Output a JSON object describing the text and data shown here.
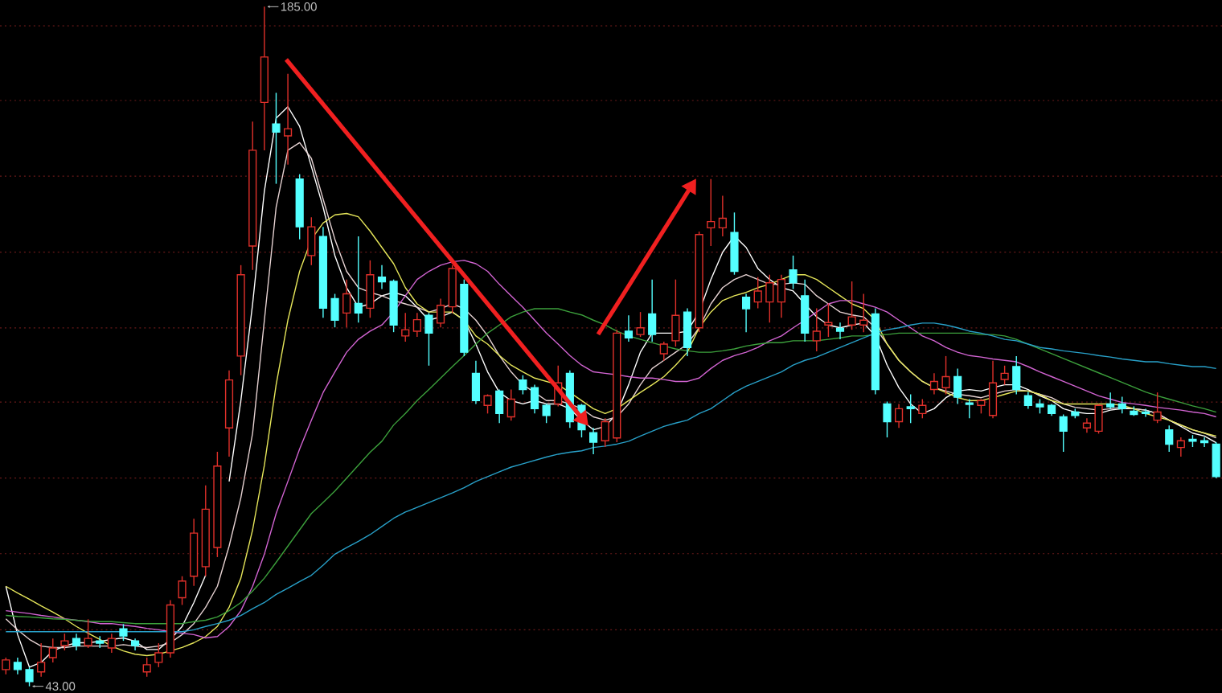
{
  "chart_data": {
    "type": "candlestick",
    "categories": [
      null,
      null,
      null,
      null,
      null,
      null,
      null,
      null,
      null,
      null,
      null,
      null,
      null,
      null,
      null,
      null,
      null,
      null,
      null,
      null,
      null,
      null,
      null,
      null,
      null,
      null,
      null,
      null,
      null,
      null,
      null,
      null,
      null,
      null,
      null,
      null,
      null,
      null,
      null,
      null,
      null,
      null,
      null,
      null,
      null,
      null,
      null,
      null,
      null,
      null,
      null,
      null,
      null,
      null,
      null,
      null,
      null,
      null,
      null,
      null,
      null,
      null,
      null,
      null,
      null,
      null,
      null,
      null,
      null,
      null,
      null,
      null,
      null,
      null,
      null,
      null,
      null,
      null,
      null,
      null,
      null,
      null,
      null,
      null,
      null,
      null,
      null,
      null,
      null,
      null,
      null,
      null,
      null,
      null,
      null,
      null,
      null,
      null,
      null,
      null,
      null,
      null,
      null,
      null
    ],
    "ohlc": [
      [
        46.5,
        49,
        45.5,
        48.5
      ],
      [
        48,
        49,
        45.5,
        46.5
      ],
      [
        46.5,
        47,
        43,
        44
      ],
      [
        46,
        52,
        45,
        48
      ],
      [
        49,
        53,
        48,
        51
      ],
      [
        51.5,
        54,
        50.5,
        52.5
      ],
      [
        53,
        54,
        50.5,
        51.5
      ],
      [
        51.5,
        57,
        51,
        53
      ],
      [
        52.5,
        53.5,
        51,
        52
      ],
      [
        51,
        54,
        50,
        53
      ],
      [
        55,
        56,
        52.5,
        53.5
      ],
      [
        52.5,
        53,
        50.5,
        51.5
      ],
      [
        46,
        49,
        45,
        47.5
      ],
      [
        48,
        52,
        47,
        50
      ],
      [
        50,
        61,
        49,
        60
      ],
      [
        61.5,
        66,
        60,
        65
      ],
      [
        66,
        78,
        64,
        75
      ],
      [
        68,
        85,
        66,
        80
      ],
      [
        72,
        92,
        70,
        89
      ],
      [
        97,
        109,
        91,
        107
      ],
      [
        112,
        131,
        108,
        129
      ],
      [
        135,
        161,
        130,
        155
      ],
      [
        165,
        185,
        155,
        174.5
      ],
      [
        160.5,
        167,
        148,
        158.8
      ],
      [
        158,
        171,
        152,
        159.5
      ],
      [
        149,
        150,
        136.4,
        139
      ],
      [
        133,
        141,
        131,
        139
      ],
      [
        137,
        139,
        120,
        122
      ],
      [
        124,
        125,
        118,
        119.5
      ],
      [
        121,
        128,
        118,
        125
      ],
      [
        123,
        137,
        119,
        121
      ],
      [
        122,
        132,
        120,
        129
      ],
      [
        128.5,
        131,
        126,
        127.5
      ],
      [
        127.6,
        128,
        117,
        118.5
      ],
      [
        116.2,
        121,
        115,
        117.5
      ],
      [
        117.2,
        121,
        116,
        119.6
      ],
      [
        120.5,
        121,
        110,
        116.8
      ],
      [
        118.9,
        124,
        118,
        122.6
      ],
      [
        122.3,
        131,
        121,
        130.3
      ],
      [
        127,
        128,
        112,
        112.8
      ],
      [
        108.4,
        111,
        102,
        102.7
      ],
      [
        101.7,
        104,
        100,
        103.7
      ],
      [
        104.7,
        105,
        98,
        100
      ],
      [
        99.3,
        105,
        98.5,
        103
      ],
      [
        107,
        108,
        104,
        105
      ],
      [
        105.4,
        106,
        100,
        101
      ],
      [
        101.7,
        102,
        98,
        99.6
      ],
      [
        102,
        110,
        101.5,
        106.4
      ],
      [
        108.4,
        109,
        97,
        98.3
      ],
      [
        101.7,
        102,
        95,
        96.6
      ],
      [
        96,
        97,
        91.5,
        94
      ],
      [
        94.3,
        99,
        93,
        98.3
      ],
      [
        94.9,
        117.5,
        94,
        116.8
      ],
      [
        117.2,
        120.5,
        115,
        115.8
      ],
      [
        116.5,
        121.2,
        116,
        117.9
      ],
      [
        120.8,
        128,
        115,
        116.5
      ],
      [
        112.5,
        115,
        111,
        114.5
      ],
      [
        115.2,
        128,
        114,
        120.5
      ],
      [
        121.2,
        122,
        112,
        113.8
      ],
      [
        117.9,
        138,
        117,
        137.4
      ],
      [
        138.8,
        149,
        135,
        140.1
      ],
      [
        138.8,
        145.5,
        137,
        140.8
      ],
      [
        137.8,
        142,
        129,
        129.7
      ],
      [
        124.3,
        125,
        117,
        121.9
      ],
      [
        123.3,
        128.5,
        122,
        125.6
      ],
      [
        123.3,
        129,
        119,
        127.3
      ],
      [
        123.3,
        129,
        120,
        128
      ],
      [
        130,
        133,
        126,
        127.3
      ],
      [
        124.6,
        128,
        115,
        116.8
      ],
      [
        115.2,
        122,
        113,
        117.2
      ],
      [
        118.5,
        123,
        116,
        119
      ],
      [
        117.8,
        119,
        115.5,
        117.2
      ],
      [
        118.5,
        127.6,
        117.5,
        120.2
      ],
      [
        118.5,
        125,
        117,
        119.5
      ],
      [
        120.8,
        122,
        104,
        105
      ],
      [
        102,
        102.5,
        95,
        98.3
      ],
      [
        98.3,
        102,
        97,
        101
      ],
      [
        101.4,
        104,
        98,
        101
      ],
      [
        100,
        103,
        99,
        101.7
      ],
      [
        105,
        108.4,
        104,
        106.7
      ],
      [
        105.4,
        112,
        104,
        107.7
      ],
      [
        107.7,
        109.4,
        102,
        103.4
      ],
      [
        102.2,
        103,
        99,
        101.9
      ],
      [
        101.7,
        103,
        100,
        102.7
      ],
      [
        99.6,
        111,
        99,
        106.4
      ],
      [
        107.1,
        110,
        106,
        108.4
      ],
      [
        109.8,
        112,
        104,
        105
      ],
      [
        103.7,
        104.5,
        101,
        101.7
      ],
      [
        102,
        103,
        100,
        101.4
      ],
      [
        101.7,
        102,
        99.5,
        100
      ],
      [
        99.3,
        99.8,
        92,
        96.3
      ],
      [
        100.3,
        101,
        99,
        99.6
      ],
      [
        97,
        99,
        96,
        98
      ],
      [
        96.3,
        102,
        95.8,
        101.7
      ],
      [
        102,
        104.4,
        101,
        101.4
      ],
      [
        102,
        103.5,
        100,
        101
      ],
      [
        100.5,
        101.5,
        99.5,
        99.8
      ],
      [
        100.3,
        101,
        99.3,
        100
      ],
      [
        98.6,
        104.4,
        98,
        100.3
      ],
      [
        96.6,
        97.5,
        92,
        93.6
      ],
      [
        92.9,
        95,
        91,
        94.3
      ],
      [
        94.6,
        95.5,
        93,
        94.2
      ],
      [
        94.3,
        95,
        93,
        93.9
      ],
      [
        93.6,
        94,
        86.5,
        86.8
      ]
    ],
    "colors": [
      "#e0302a",
      "#54ffff",
      "#54ffff",
      "#e0302a",
      "#e0302a",
      "#e0302a",
      "#54ffff",
      "#e0302a",
      "#54ffff",
      "#e0302a",
      "#54ffff",
      "#54ffff",
      "#e0302a",
      "#e0302a",
      "#e0302a",
      "#e0302a",
      "#e0302a",
      "#e0302a",
      "#e0302a",
      "#e0302a",
      "#e0302a",
      "#e0302a",
      "#e0302a",
      "#54ffff",
      "#e0302a",
      "#54ffff",
      "#e0302a",
      "#54ffff",
      "#54ffff",
      "#e0302a",
      "#54ffff",
      "#e0302a",
      "#54ffff",
      "#54ffff",
      "#e0302a",
      "#e0302a",
      "#54ffff",
      "#e0302a",
      "#e0302a",
      "#54ffff",
      "#54ffff",
      "#e0302a",
      "#54ffff",
      "#e0302a",
      "#54ffff",
      "#54ffff",
      "#54ffff",
      "#e0302a",
      "#54ffff",
      "#54ffff",
      "#54ffff",
      "#e0302a",
      "#e0302a",
      "#54ffff",
      "#e0302a",
      "#54ffff",
      "#e0302a",
      "#e0302a",
      "#54ffff",
      "#e0302a",
      "#e0302a",
      "#e0302a",
      "#54ffff",
      "#54ffff",
      "#e0302a",
      "#e0302a",
      "#e0302a",
      "#54ffff",
      "#54ffff",
      "#e0302a",
      "#e0302a",
      "#54ffff",
      "#e0302a",
      "#e0302a",
      "#54ffff",
      "#54ffff",
      "#e0302a",
      "#54ffff",
      "#e0302a",
      "#e0302a",
      "#e0302a",
      "#54ffff",
      "#54ffff",
      "#e0302a",
      "#e0302a",
      "#e0302a",
      "#54ffff",
      "#54ffff",
      "#54ffff",
      "#54ffff",
      "#54ffff",
      "#54ffff",
      "#e0302a",
      "#e0302a",
      "#54ffff",
      "#54ffff",
      "#54ffff",
      "#54ffff",
      "#e0302a",
      "#54ffff",
      "#e0302a",
      "#54ffff",
      "#54ffff",
      "#54ffff"
    ],
    "series": [
      {
        "type": "line",
        "color": "#ffffff",
        "values": [
          63.9,
          53.8,
          47,
          48,
          50.4,
          51.4,
          52.1,
          52.1,
          52.4,
          52.8,
          53.1,
          52.4,
          50.7,
          50.7,
          52.8,
          55.5,
          60.5,
          66.2,
          null,
          85.8,
          102.7,
          122.9,
          146.5,
          161.7,
          164.1,
          160,
          151.6,
          143.1,
          133,
          126.3,
          122.2,
          122.9,
          124.6,
          125.3,
          124.6,
          122.2,
          119.5,
          120.2,
          121.2,
          119.5,
          114.5,
          108.7,
          104.4,
          102.7,
          102,
          102.7,
          102,
          102,
          101,
          98.6,
          96.6,
          97.3,
          100,
          106,
          112.8,
          116.8,
          116.8,
          116.8,
          117.2,
          121.2,
          128,
          133.7,
          137.1,
          134.7,
          130.3,
          128,
          126.3,
          125.6,
          122.9,
          120.2,
          118.5,
          117.9,
          118.5,
          118.9,
          116.2,
          110.1,
          105.4,
          102,
          100,
          101,
          103.3,
          104.7,
          105,
          104.7,
          105.4,
          106,
          106,
          105,
          103.7,
          102.7,
          101,
          100.3,
          100,
          100,
          100.7,
          101,
          101,
          100.7,
          100,
          98.6,
          97.3,
          95.9,
          95.3,
          93.9
        ]
      },
      {
        "type": "line",
        "color": "#e6d2d2",
        "values": [
          57.1,
          54.8,
          52.8,
          51.4,
          51.1,
          51.1,
          51.4,
          51.4,
          51.4,
          51.4,
          51.7,
          51.4,
          51.1,
          51.4,
          52.1,
          53.8,
          56.1,
          59.5,
          63.9,
          72.3,
          82.4,
          95.9,
          119.5,
          143.1,
          155,
          156.6,
          153.3,
          144.8,
          136.4,
          129.7,
          126.3,
          125.3,
          124.6,
          123.6,
          122.9,
          122.2,
          121.2,
          121.9,
          122.9,
          121.9,
          119.5,
          116.2,
          112.1,
          108.7,
          106,
          104.4,
          102.7,
          102.7,
          102,
          101,
          99.3,
          98.6,
          99.3,
          102,
          106,
          109.4,
          111.1,
          112.8,
          114.5,
          117.9,
          122.9,
          126.3,
          128,
          129,
          128,
          127,
          127,
          127.3,
          127,
          124.6,
          122.9,
          121.2,
          120.6,
          120.2,
          117.9,
          114.5,
          111.1,
          108.7,
          106.7,
          105.4,
          104.7,
          104,
          103.7,
          103.3,
          104,
          104.7,
          105,
          104.7,
          104,
          103.3,
          102,
          101.3,
          101,
          100.7,
          101,
          101.3,
          101,
          100.7,
          100,
          98.6,
          97.6,
          96.6,
          95.9,
          94.9
        ]
      },
      {
        "type": "line",
        "color": "#e6e65a",
        "values": [
          63.9,
          62.5,
          61.2,
          59.8,
          58.5,
          57.1,
          55.5,
          54.1,
          52.8,
          51.4,
          50.4,
          49.7,
          49.4,
          49.7,
          50.4,
          51.1,
          52.1,
          53.4,
          55.5,
          59.5,
          65.6,
          75.7,
          89.2,
          106,
          119.5,
          129.7,
          136.4,
          139.8,
          141.5,
          141.8,
          141.1,
          138.1,
          134.7,
          131.3,
          126.3,
          122.9,
          121.2,
          121.2,
          121.2,
          119.5,
          116.2,
          114.5,
          112.1,
          110.1,
          108.7,
          107.4,
          106.7,
          106,
          104.4,
          102.7,
          101,
          100,
          101,
          102.7,
          104.4,
          106,
          107.7,
          110.1,
          112.8,
          117.9,
          121.2,
          123.6,
          124.6,
          125.3,
          126.3,
          127,
          128,
          129,
          129,
          128,
          126.3,
          124.6,
          122.9,
          121.9,
          119.5,
          114.5,
          111.1,
          108.7,
          106.7,
          105.4,
          104.4,
          103.3,
          102.7,
          102.7,
          103.3,
          104,
          104.7,
          104.7,
          104,
          102.7,
          102,
          102,
          102,
          102,
          102,
          101.7,
          101,
          100,
          99.3,
          98.6,
          97.6,
          96.6,
          95.9,
          95.3
        ]
      },
      {
        "type": "line",
        "color": "#d264d2",
        "values": [
          58.8,
          58.5,
          58.2,
          57.8,
          57.5,
          57.1,
          56.8,
          56.5,
          56.1,
          56.1,
          55.8,
          55.5,
          55.1,
          54.8,
          54.4,
          54.1,
          53.8,
          53.1,
          53.4,
          55.5,
          58.8,
          63.9,
          70.6,
          79.1,
          85.8,
          92.6,
          98.6,
          104.4,
          108.7,
          112.8,
          115.5,
          117.2,
          118.5,
          121.2,
          124.6,
          128,
          129.7,
          131,
          131.7,
          132,
          131.3,
          129.7,
          127,
          124.6,
          122.2,
          119.5,
          116.8,
          114.5,
          112.1,
          110.1,
          108.7,
          108.4,
          108.1,
          107.7,
          107.4,
          107.4,
          107.1,
          106.7,
          106.7,
          107.4,
          109.4,
          111.1,
          112.1,
          112.8,
          113.8,
          115.2,
          116.2,
          117.9,
          119.5,
          121.2,
          122.9,
          123.6,
          123.6,
          122.9,
          122.2,
          121.2,
          119.5,
          117.9,
          116.2,
          115.2,
          113.8,
          112.8,
          112.1,
          111.8,
          111.4,
          111.1,
          110.8,
          109.8,
          108.7,
          107.7,
          106.7,
          105.7,
          104.7,
          103.7,
          103,
          102.3,
          102,
          101.7,
          101.3,
          101,
          100.7,
          100.3,
          100,
          99.3
        ]
      },
      {
        "type": "line",
        "color": "#3ca03c",
        "values": [
          57.8,
          57.6,
          57.5,
          57.3,
          57.1,
          57,
          56.8,
          56.6,
          56.5,
          56.5,
          56.3,
          56.1,
          56.1,
          56.1,
          56.1,
          56.1,
          56.5,
          56.8,
          57.5,
          58.8,
          60.5,
          62.9,
          65.6,
          68.9,
          72.3,
          75.7,
          79.1,
          81.4,
          83.8,
          86.5,
          89.2,
          91.9,
          94.2,
          97.6,
          100,
          102.7,
          105,
          107.4,
          109.8,
          112.1,
          114.5,
          116.8,
          118.5,
          120.2,
          121.2,
          121.9,
          121.9,
          121.9,
          121.2,
          120.6,
          119.5,
          118.5,
          117.2,
          116.2,
          115.5,
          114.8,
          114.1,
          113.5,
          113.1,
          112.8,
          112.8,
          113.1,
          113.5,
          114.1,
          114.5,
          114.8,
          114.8,
          115.2,
          115.2,
          115.2,
          115.5,
          115.8,
          116.2,
          116.2,
          116.5,
          116.5,
          116.8,
          116.8,
          116.8,
          116.8,
          116.8,
          116.8,
          116.8,
          116.5,
          116.5,
          116.2,
          115.5,
          114.5,
          113.5,
          112.5,
          111.5,
          110.5,
          109.5,
          108.5,
          107.5,
          106.5,
          105.5,
          104.5,
          103.7,
          103,
          102.3,
          101.6,
          101,
          100.3
        ]
      },
      {
        "type": "line",
        "color": "#28a0c8",
        "values": [
          54.4,
          54.4,
          54.4,
          54.4,
          54.4,
          54.4,
          54.4,
          54.4,
          54.4,
          54.4,
          54.4,
          54.4,
          54.4,
          54.4,
          54.4,
          54.4,
          54.8,
          55.5,
          56.1,
          56.8,
          57.8,
          59.2,
          60.5,
          62.2,
          63.5,
          64.9,
          66.2,
          68.3,
          70.6,
          72,
          73.3,
          74.7,
          76.4,
          78.1,
          79.4,
          80.4,
          81.4,
          82.4,
          83.4,
          84.5,
          85.8,
          86.8,
          87.8,
          88.8,
          89.5,
          90.2,
          90.9,
          91.5,
          91.9,
          92.2,
          92.9,
          93.2,
          93.6,
          94.2,
          95.3,
          96.3,
          97.3,
          98,
          98.6,
          100,
          101,
          102.7,
          104.4,
          105.7,
          106.7,
          107.7,
          108.7,
          110.1,
          111.1,
          111.8,
          112.8,
          113.8,
          114.8,
          115.8,
          116.8,
          117.5,
          117.9,
          118.5,
          118.9,
          118.9,
          118.5,
          117.9,
          117.2,
          116.8,
          116.2,
          115.5,
          115.2,
          114.5,
          113.8,
          113.5,
          113.1,
          112.8,
          112.5,
          112.1,
          111.8,
          111.4,
          111.1,
          110.8,
          110.8,
          110.4,
          110.1,
          109.8,
          109.8,
          109.4
        ]
      }
    ],
    "yticks": [
      {
        "value": 54.8,
        "label": null
      },
      {
        "value": 70.7,
        "label": null
      },
      {
        "value": 86.5,
        "label": null
      },
      {
        "value": 102.4,
        "label": null
      },
      {
        "value": 117.9,
        "label": null
      },
      {
        "value": 133.7,
        "label": null
      },
      {
        "value": 149.6,
        "label": null
      },
      {
        "value": 165.4,
        "label": null
      },
      {
        "value": 181,
        "label": null
      }
    ],
    "grid": "y",
    "annotations": [
      "185.00",
      "43.00"
    ]
  }
}
